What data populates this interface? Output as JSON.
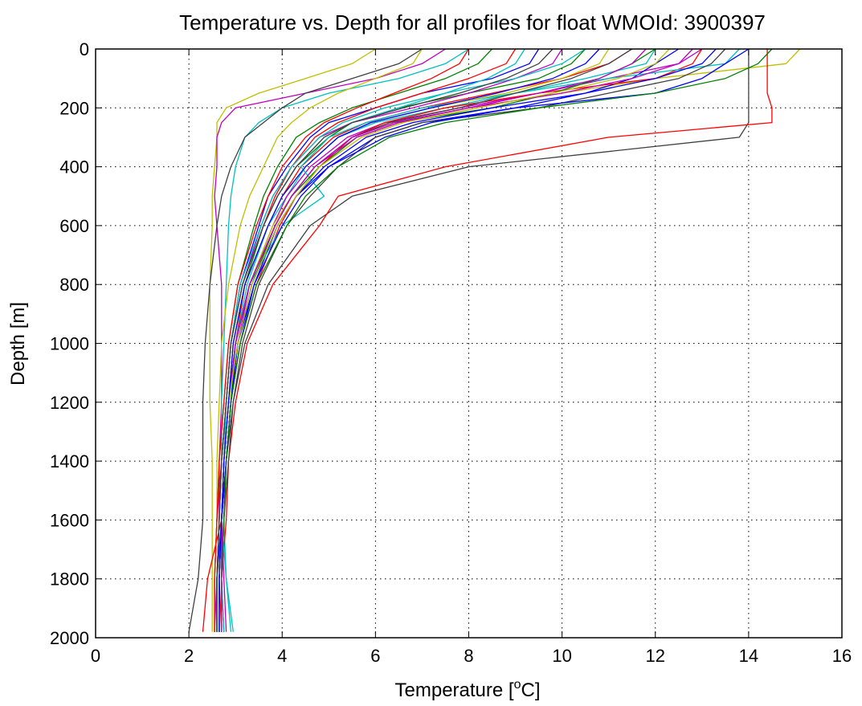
{
  "chart_data": {
    "type": "line",
    "title": "Temperature vs. Depth for all profiles for float WMOId: 3900397",
    "xlabel_pre": "Temperature [",
    "xlabel_sup": "o",
    "xlabel_post": "C]",
    "ylabel": "Depth [m]",
    "xlim": [
      0,
      16
    ],
    "ylim": [
      0,
      2000
    ],
    "y_reversed": true,
    "xticks": [
      0,
      2,
      4,
      6,
      8,
      10,
      12,
      14,
      16
    ],
    "yticks": [
      0,
      200,
      400,
      600,
      800,
      1000,
      1200,
      1400,
      1600,
      1800,
      2000
    ],
    "grid": true,
    "depth_levels": [
      0,
      50,
      100,
      150,
      200,
      250,
      300,
      400,
      500,
      600,
      800,
      1000,
      1200,
      1400,
      1600,
      1800,
      1980
    ],
    "series": [
      {
        "color": "#0000ff",
        "values": [
          9.5,
          9.3,
          8.5,
          7.0,
          6.0,
          5.0,
          4.6,
          4.1,
          3.7,
          3.5,
          3.1,
          2.9,
          2.8,
          2.7,
          2.65,
          2.6,
          2.6
        ]
      },
      {
        "color": "#008000",
        "values": [
          10.5,
          10.2,
          9.5,
          8.0,
          6.5,
          5.5,
          5.0,
          4.3,
          3.9,
          3.6,
          3.2,
          2.95,
          2.85,
          2.75,
          2.7,
          2.65,
          2.65
        ]
      },
      {
        "color": "#ff0000",
        "values": [
          11.5,
          11.0,
          10.0,
          8.5,
          7.0,
          5.8,
          5.1,
          4.4,
          4.0,
          3.7,
          3.2,
          3.0,
          2.85,
          2.75,
          2.7,
          2.65,
          2.7
        ]
      },
      {
        "color": "#00bfbf",
        "values": [
          12.0,
          11.8,
          10.5,
          9.0,
          7.5,
          6.0,
          5.2,
          4.5,
          4.1,
          3.7,
          3.25,
          3.0,
          2.9,
          2.8,
          2.75,
          2.8,
          2.9
        ]
      },
      {
        "color": "#bf00bf",
        "values": [
          13.0,
          12.5,
          11.0,
          9.5,
          7.8,
          6.2,
          5.4,
          4.6,
          4.1,
          3.8,
          3.3,
          3.05,
          2.9,
          2.8,
          2.75,
          2.7,
          2.7
        ]
      },
      {
        "color": "#bfbf00",
        "values": [
          15.1,
          14.8,
          12.0,
          10.0,
          8.0,
          6.4,
          5.5,
          4.7,
          4.2,
          3.8,
          3.3,
          3.0,
          2.85,
          2.75,
          2.7,
          2.6,
          2.6
        ]
      },
      {
        "color": "#404040",
        "values": [
          14.0,
          14.0,
          14.0,
          14.0,
          14.0,
          14.0,
          13.8,
          8.0,
          5.5,
          4.6,
          3.7,
          3.2,
          2.95,
          2.8,
          2.75,
          2.7,
          2.75
        ]
      },
      {
        "color": "#ff0000",
        "values": [
          14.4,
          14.4,
          14.4,
          14.4,
          14.5,
          14.5,
          11.0,
          7.5,
          5.2,
          4.8,
          3.8,
          3.25,
          3.0,
          2.85,
          2.8,
          2.7,
          2.75
        ]
      },
      {
        "color": "#bfbf00",
        "values": [
          6.0,
          5.5,
          4.5,
          3.5,
          2.8,
          2.6,
          2.6,
          2.55,
          2.5,
          2.5,
          2.45,
          2.45,
          2.45,
          2.5,
          2.5,
          2.5,
          2.5
        ]
      },
      {
        "color": "#bf00bf",
        "values": [
          7.5,
          7.0,
          6.0,
          4.5,
          3.0,
          2.7,
          2.6,
          2.6,
          2.55,
          2.6,
          2.7,
          2.7,
          2.7,
          2.65,
          2.65,
          2.6,
          2.6
        ]
      },
      {
        "color": "#00bfbf",
        "values": [
          8.0,
          7.5,
          6.5,
          5.0,
          4.0,
          3.5,
          3.2,
          3.0,
          2.9,
          2.85,
          2.8,
          2.75,
          2.7,
          2.7,
          2.65,
          2.6,
          2.6
        ]
      },
      {
        "color": "#404040",
        "values": [
          7.0,
          6.5,
          5.5,
          4.5,
          4.0,
          3.6,
          3.2,
          2.9,
          2.7,
          2.6,
          2.45,
          2.35,
          2.3,
          2.3,
          2.3,
          2.2,
          2.0
        ]
      },
      {
        "color": "#0000ff",
        "values": [
          12.5,
          12.0,
          11.5,
          10.5,
          9.0,
          7.0,
          6.0,
          5.0,
          4.3,
          3.9,
          3.4,
          3.1,
          2.9,
          2.8,
          2.7,
          2.65,
          2.65
        ]
      },
      {
        "color": "#008000",
        "values": [
          8.5,
          8.2,
          7.5,
          6.5,
          5.5,
          4.8,
          4.3,
          3.9,
          3.6,
          3.4,
          3.05,
          2.85,
          2.75,
          2.65,
          2.6,
          2.55,
          2.55
        ]
      },
      {
        "color": "#ff0000",
        "values": [
          13.0,
          12.8,
          12.0,
          9.5,
          7.5,
          6.2,
          5.5,
          4.8,
          4.3,
          3.95,
          3.45,
          3.1,
          2.9,
          2.8,
          2.7,
          2.4,
          2.3
        ]
      },
      {
        "color": "#00bfbf",
        "values": [
          13.8,
          13.5,
          11.0,
          9.0,
          7.0,
          5.8,
          5.0,
          4.4,
          4.9,
          4.0,
          3.3,
          3.0,
          2.85,
          2.75,
          2.7,
          2.8,
          2.95
        ]
      },
      {
        "color": "#bf00bf",
        "values": [
          10.0,
          9.8,
          9.0,
          8.0,
          6.8,
          5.5,
          4.8,
          4.2,
          3.8,
          3.55,
          3.15,
          2.9,
          2.8,
          2.7,
          2.65,
          2.6,
          2.55
        ]
      },
      {
        "color": "#bfbf00",
        "values": [
          11.0,
          10.8,
          10.0,
          8.8,
          7.2,
          5.9,
          5.2,
          4.5,
          4.0,
          3.7,
          3.2,
          2.95,
          2.85,
          2.75,
          2.7,
          2.7,
          2.7
        ]
      },
      {
        "color": "#404040",
        "values": [
          13.5,
          13.2,
          12.5,
          11.0,
          9.5,
          7.0,
          6.0,
          5.2,
          4.6,
          4.1,
          3.5,
          3.15,
          2.95,
          2.85,
          2.75,
          2.7,
          2.7
        ]
      },
      {
        "color": "#0000ff",
        "values": [
          14.0,
          13.5,
          13.0,
          12.0,
          9.0,
          7.2,
          6.2,
          5.0,
          4.4,
          4.0,
          3.4,
          3.05,
          2.9,
          2.8,
          2.7,
          2.6,
          2.6
        ]
      },
      {
        "color": "#008000",
        "values": [
          12.0,
          11.5,
          10.8,
          9.8,
          8.5,
          6.5,
          5.6,
          4.8,
          4.2,
          3.85,
          3.35,
          3.05,
          2.85,
          2.75,
          2.7,
          2.65,
          2.65
        ]
      },
      {
        "color": "#ff0000",
        "values": [
          9.0,
          8.8,
          8.0,
          7.0,
          6.0,
          5.2,
          4.7,
          4.2,
          3.85,
          3.6,
          3.15,
          2.9,
          2.8,
          2.7,
          2.6,
          2.55,
          2.55
        ]
      },
      {
        "color": "#00bfbf",
        "values": [
          10.5,
          10.0,
          9.0,
          7.5,
          6.2,
          5.3,
          4.8,
          4.2,
          3.8,
          3.55,
          3.1,
          2.9,
          2.8,
          2.75,
          2.7,
          2.7,
          2.75
        ]
      },
      {
        "color": "#bf00bf",
        "values": [
          12.8,
          12.5,
          11.5,
          10.0,
          8.0,
          6.5,
          5.6,
          4.7,
          4.2,
          3.85,
          3.3,
          3.0,
          2.85,
          2.75,
          2.7,
          2.75,
          2.8
        ]
      },
      {
        "color": "#bfbf00",
        "values": [
          7.0,
          6.8,
          6.0,
          5.2,
          4.6,
          4.2,
          3.9,
          3.6,
          3.3,
          3.1,
          2.85,
          2.7,
          2.65,
          2.6,
          2.6,
          2.55,
          2.55
        ]
      },
      {
        "color": "#404040",
        "values": [
          11.5,
          11.0,
          10.2,
          9.0,
          7.8,
          6.3,
          5.5,
          4.7,
          4.2,
          3.85,
          3.3,
          3.0,
          2.85,
          2.75,
          2.7,
          2.65,
          2.65
        ]
      },
      {
        "color": "#0000ff",
        "values": [
          13.3,
          13.0,
          12.0,
          10.5,
          8.5,
          6.8,
          5.8,
          4.9,
          4.3,
          3.9,
          3.35,
          3.05,
          2.9,
          2.8,
          2.7,
          2.65,
          2.65
        ]
      },
      {
        "color": "#008000",
        "values": [
          14.5,
          14.2,
          13.5,
          12.0,
          9.5,
          7.5,
          6.3,
          5.2,
          4.5,
          4.1,
          3.45,
          3.1,
          2.9,
          2.8,
          2.75,
          2.7,
          2.7
        ]
      },
      {
        "color": "#ff0000",
        "values": [
          8.0,
          7.8,
          7.2,
          6.4,
          5.6,
          4.9,
          4.5,
          4.0,
          3.7,
          3.45,
          3.05,
          2.85,
          2.75,
          2.65,
          2.6,
          2.55,
          2.55
        ]
      },
      {
        "color": "#00bfbf",
        "values": [
          9.2,
          9.0,
          8.4,
          7.5,
          6.5,
          5.5,
          4.9,
          4.3,
          3.9,
          3.6,
          3.15,
          2.9,
          2.8,
          2.7,
          2.65,
          2.6,
          2.6
        ]
      },
      {
        "color": "#bf00bf",
        "values": [
          11.8,
          11.5,
          10.8,
          9.5,
          8.0,
          6.4,
          5.5,
          4.7,
          4.2,
          3.85,
          3.3,
          3.0,
          2.85,
          2.75,
          2.7,
          2.7,
          2.7
        ]
      },
      {
        "color": "#bfbf00",
        "values": [
          12.3,
          12.0,
          11.2,
          9.8,
          8.2,
          6.6,
          5.7,
          4.8,
          4.3,
          3.9,
          3.35,
          3.05,
          2.85,
          2.75,
          2.7,
          2.65,
          2.65
        ]
      },
      {
        "color": "#404040",
        "values": [
          9.8,
          9.5,
          8.8,
          7.8,
          6.6,
          5.5,
          4.9,
          4.3,
          3.9,
          3.6,
          3.15,
          2.9,
          2.8,
          2.7,
          2.65,
          2.6,
          2.6
        ]
      },
      {
        "color": "#0000ff",
        "values": [
          10.8,
          10.5,
          9.8,
          8.6,
          7.2,
          5.9,
          5.2,
          4.5,
          4.0,
          3.7,
          3.2,
          2.95,
          2.85,
          2.75,
          2.7,
          2.65,
          2.65
        ]
      }
    ]
  }
}
